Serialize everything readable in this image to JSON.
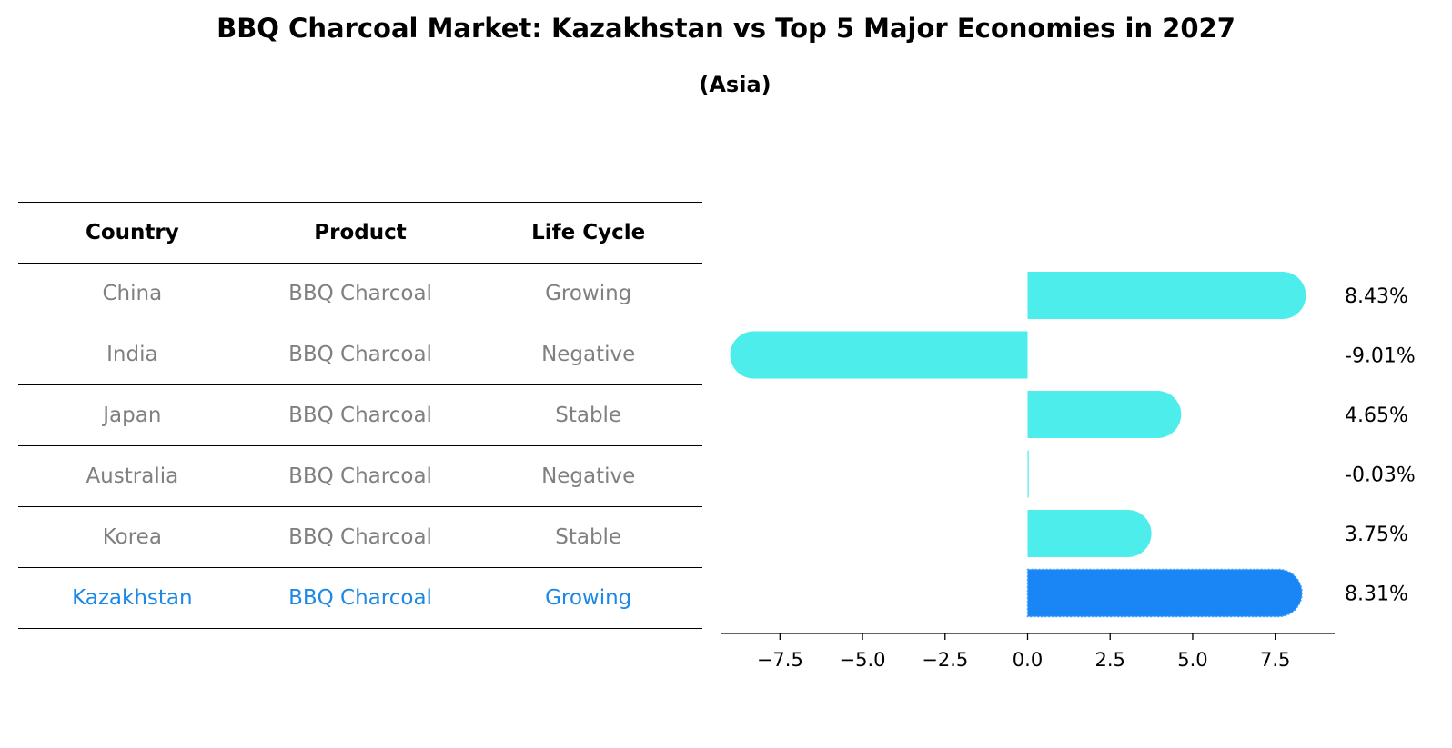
{
  "title": "BBQ Charcoal Market: Kazakhstan vs Top 5 Major Economies in 2027",
  "subtitle": "(Asia)",
  "table": {
    "headers": [
      "Country",
      "Product",
      "Life Cycle"
    ],
    "rows": [
      [
        "China",
        "BBQ Charcoal",
        "Growing"
      ],
      [
        "India",
        "BBQ Charcoal",
        "Negative"
      ],
      [
        "Japan",
        "BBQ Charcoal",
        "Stable"
      ],
      [
        "Australia",
        "BBQ Charcoal",
        "Negative"
      ],
      [
        "Korea",
        "BBQ Charcoal",
        "Stable"
      ],
      [
        "Kazakhstan",
        "BBQ Charcoal",
        "Growing"
      ]
    ],
    "highlight_row": 5
  },
  "colors": {
    "bar": "#4dedeb",
    "highlight_bar": "#1a86f5",
    "highlight_text": "#1e88e5",
    "muted_text": "#808080"
  },
  "chart_data": {
    "type": "bar",
    "orientation": "horizontal",
    "categories": [
      "China",
      "India",
      "Japan",
      "Australia",
      "Korea",
      "Kazakhstan"
    ],
    "values": [
      8.43,
      -9.01,
      4.65,
      -0.03,
      3.75,
      8.31
    ],
    "value_labels": [
      "8.43%",
      "-9.01%",
      "4.65%",
      "-0.03%",
      "3.75%",
      "8.31%"
    ],
    "highlight_index": 5,
    "xlim": [
      -9.3,
      9.3
    ],
    "xticks": [
      -7.5,
      -5.0,
      -2.5,
      0.0,
      2.5,
      5.0,
      7.5
    ],
    "xtick_labels": [
      "−7.5",
      "−5.0",
      "−2.5",
      "0.0",
      "2.5",
      "5.0",
      "7.5"
    ],
    "xlabel": "",
    "ylabel": ""
  }
}
